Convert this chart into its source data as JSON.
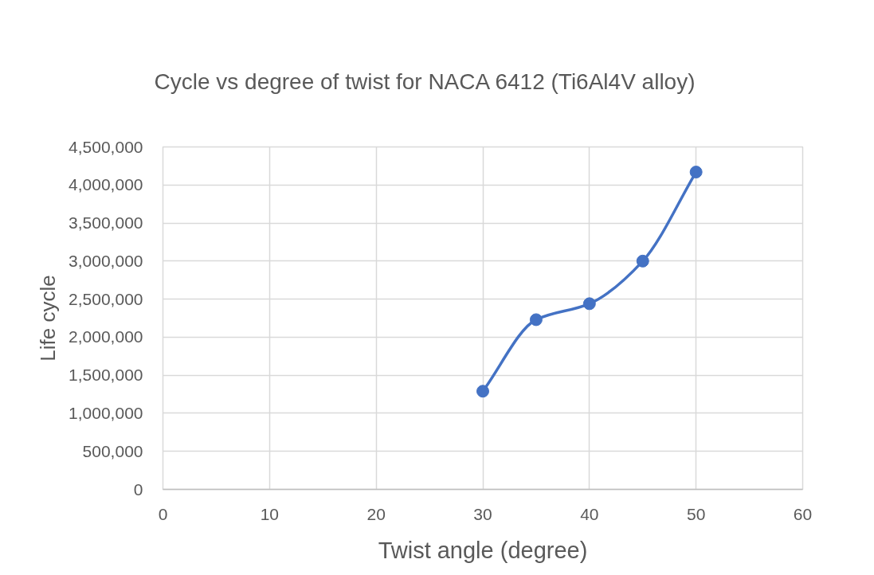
{
  "chart_data": {
    "type": "line",
    "title": "Cycle vs degree of twist for NACA 6412 (Ti6Al4V alloy)",
    "xlabel": "Twist angle (degree)",
    "ylabel": "Life cycle",
    "x": [
      30,
      35,
      40,
      45,
      50
    ],
    "series": [
      {
        "color": "#4472c4",
        "values": [
          1290000,
          2230000,
          2440000,
          3000000,
          4170000
        ]
      }
    ],
    "xlim": [
      0,
      60
    ],
    "xticks": [
      0,
      10,
      20,
      30,
      40,
      50,
      60
    ],
    "ylim": [
      0,
      4500000
    ],
    "yticks": [
      0,
      {
        "value": 500000,
        "label": "500,000"
      },
      {
        "value": 1000000,
        "label": "1,000,000"
      },
      {
        "value": 1500000,
        "label": "1,500,000"
      },
      {
        "value": 2000000,
        "label": "2,000,000"
      },
      {
        "value": 2500000,
        "label": "2,500,000"
      },
      {
        "value": 3000000,
        "label": "3,000,000"
      },
      {
        "value": 3500000,
        "label": "3,500,000"
      },
      {
        "value": 4000000,
        "label": "4,000,000"
      },
      {
        "value": 4500000,
        "label": "4,500,000"
      }
    ],
    "grid": true,
    "marker": "circle",
    "line_style": "solid"
  }
}
